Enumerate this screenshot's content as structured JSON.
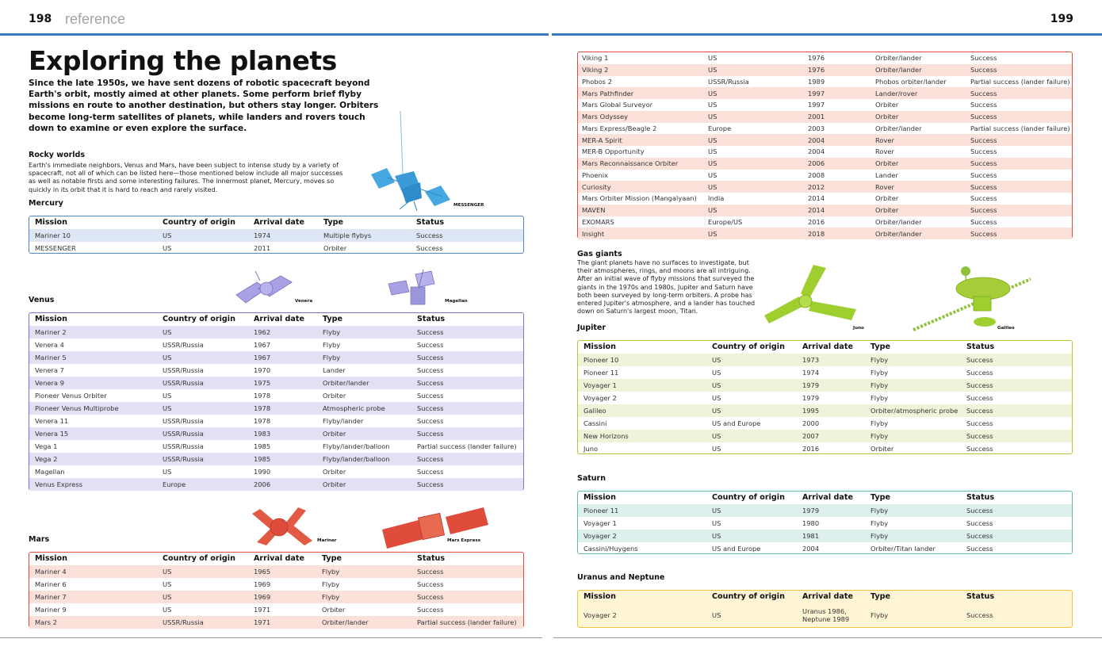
{
  "page": {
    "left_num": "198",
    "section": "reference",
    "right_num": "199",
    "title": "Exploring the planets",
    "intro": "Since the late 1950s, we have sent dozens of robotic spacecraft beyond Earth's orbit, mostly aimed at other planets. Some perform brief flyby missions en route to another destination, but others stay longer. Orbiters become long-term satellites of planets, while landers and rovers touch down to examine or even explore the surface.",
    "rocky_heading": "Rocky worlds",
    "rocky_text": "Earth's immediate neighbors, Venus and Mars, have been subject to intense study by a variety of spacecraft, not all of which can be listed here—those mentioned below include all major successes as well as notable firsts and some interesting failures. The innermost planet, Mercury, moves so quickly in its orbit that it is hard to reach and rarely visited.",
    "gas_heading": "Gas giants",
    "gas_text": "The giant planets have no surfaces to investigate, but their atmospheres, rings, and moons are all intriguing. After an initial wave of flyby missions that surveyed the giants in the 1970s and 1980s, Jupiter and Saturn have both been surveyed by long-term orbiters. A probe has entered Jupiter's atmosphere, and a lander has touched down on Saturn's largest moon, Titan."
  },
  "captions": {
    "messenger": "MESSENGER",
    "venera": "Venera",
    "magellan": "Magellan",
    "mariner": "Mariner",
    "mars_express": "Mars Express",
    "juno": "Juno",
    "galileo": "Galileo"
  },
  "columns": [
    "Mission",
    "Country of origin",
    "Arrival date",
    "Type",
    "Status"
  ],
  "colors": {
    "rule": "#3a78bf",
    "mercury": "#4f86c6",
    "mercury_band": "#dde6f4",
    "venus": "#7a74c4",
    "venus_band": "#e4e0f3",
    "mars": "#df4c3c",
    "mars_band": "#fbe1da",
    "jupiter": "#a6cd38",
    "jupiter_band": "#eef4d9",
    "saturn": "#5ebcae",
    "saturn_band": "#def0ed",
    "uranus": "#f0c43a",
    "uranus_band": "#fff4d4"
  },
  "tables": {
    "mercury": {
      "heading": "Mercury",
      "rows": [
        [
          "Mariner 10",
          "US",
          "1974",
          "Multiple flybys",
          "Success"
        ],
        [
          "MESSENGER",
          "US",
          "2011",
          "Orbiter",
          "Success"
        ]
      ]
    },
    "venus": {
      "heading": "Venus",
      "rows": [
        [
          "Mariner 2",
          "US",
          "1962",
          "Flyby",
          "Success"
        ],
        [
          "Venera 4",
          "USSR/Russia",
          "1967",
          "Flyby",
          "Success"
        ],
        [
          "Mariner 5",
          "US",
          "1967",
          "Flyby",
          "Success"
        ],
        [
          "Venera 7",
          "USSR/Russia",
          "1970",
          "Lander",
          "Success"
        ],
        [
          "Venera 9",
          "USSR/Russia",
          "1975",
          "Orbiter/lander",
          "Success"
        ],
        [
          "Pioneer Venus Orbiter",
          "US",
          "1978",
          "Orbiter",
          "Success"
        ],
        [
          "Pioneer Venus Multiprobe",
          "US",
          "1978",
          "Atmospheric probe",
          "Success"
        ],
        [
          "Venera 11",
          "USSR/Russia",
          "1978",
          "Flyby/lander",
          "Success"
        ],
        [
          "Venera 15",
          "USSR/Russia",
          "1983",
          "Orbiter",
          "Success"
        ],
        [
          "Vega 1",
          "USSR/Russia",
          "1985",
          "Flyby/lander/balloon",
          "Partial success (lander failure)"
        ],
        [
          "Vega 2",
          "USSR/Russia",
          "1985",
          "Flyby/lander/balloon",
          "Success"
        ],
        [
          "Magellan",
          "US",
          "1990",
          "Orbiter",
          "Success"
        ],
        [
          "Venus Express",
          "Europe",
          "2006",
          "Orbiter",
          "Success"
        ]
      ]
    },
    "mars": {
      "heading": "Mars",
      "rows": [
        [
          "Mariner 4",
          "US",
          "1965",
          "Flyby",
          "Success"
        ],
        [
          "Mariner 6",
          "US",
          "1969",
          "Flyby",
          "Success"
        ],
        [
          "Mariner 7",
          "US",
          "1969",
          "Flyby",
          "Success"
        ],
        [
          "Mariner 9",
          "US",
          "1971",
          "Orbiter",
          "Success"
        ],
        [
          "Mars 2",
          "USSR/Russia",
          "1971",
          "Orbiter/lander",
          "Partial success (lander failure)"
        ]
      ]
    },
    "mars_cont": {
      "rows": [
        [
          "Viking 1",
          "US",
          "1976",
          "Orbiter/lander",
          "Success"
        ],
        [
          "Viking 2",
          "US",
          "1976",
          "Orbiter/lander",
          "Success"
        ],
        [
          "Phobos 2",
          "USSR/Russia",
          "1989",
          "Phobos orbiter/lander",
          "Partial success (lander failure)"
        ],
        [
          "Mars Pathfinder",
          "US",
          "1997",
          "Lander/rover",
          "Success"
        ],
        [
          "Mars Global Surveyor",
          "US",
          "1997",
          "Orbiter",
          "Success"
        ],
        [
          "Mars Odyssey",
          "US",
          "2001",
          "Orbiter",
          "Success"
        ],
        [
          "Mars Express/Beagle 2",
          "Europe",
          "2003",
          "Orbiter/lander",
          "Partial success (lander failure)"
        ],
        [
          "MER-A Spirit",
          "US",
          "2004",
          "Rover",
          "Success"
        ],
        [
          "MER-B Opportunity",
          "US",
          "2004",
          "Rover",
          "Success"
        ],
        [
          "Mars Reconnaissance Orbiter",
          "US",
          "2006",
          "Orbiter",
          "Success"
        ],
        [
          "Phoenix",
          "US",
          "2008",
          "Lander",
          "Success"
        ],
        [
          "Curiosity",
          "US",
          "2012",
          "Rover",
          "Success"
        ],
        [
          "Mars Orbiter Mission (Mangalyaan)",
          "India",
          "2014",
          "Orbiter",
          "Success"
        ],
        [
          "MAVEN",
          "US",
          "2014",
          "Orbiter",
          "Success"
        ],
        [
          "EXOMARS",
          "Europe/US",
          "2016",
          "Orbiter/lander",
          "Success"
        ],
        [
          "Insight",
          "US",
          "2018",
          "Orbiter/lander",
          "Success"
        ]
      ]
    },
    "jupiter": {
      "heading": "Jupiter",
      "rows": [
        [
          "Pioneer 10",
          "US",
          "1973",
          "Flyby",
          "Success"
        ],
        [
          "Pioneer 11",
          "US",
          "1974",
          "Flyby",
          "Success"
        ],
        [
          "Voyager 1",
          "US",
          "1979",
          "Flyby",
          "Success"
        ],
        [
          "Voyager 2",
          "US",
          "1979",
          "Flyby",
          "Success"
        ],
        [
          "Galileo",
          "US",
          "1995",
          "Orbiter/atmospheric probe",
          "Success"
        ],
        [
          "Cassini",
          "US and Europe",
          "2000",
          "Flyby",
          "Success"
        ],
        [
          "New Horizons",
          "US",
          "2007",
          "Flyby",
          "Success"
        ],
        [
          "Juno",
          "US",
          "2016",
          "Orbiter",
          "Success"
        ]
      ]
    },
    "saturn": {
      "heading": "Saturn",
      "rows": [
        [
          "Pioneer 11",
          "US",
          "1979",
          "Flyby",
          "Success"
        ],
        [
          "Voyager 1",
          "US",
          "1980",
          "Flyby",
          "Success"
        ],
        [
          "Voyager 2",
          "US",
          "1981",
          "Flyby",
          "Success"
        ],
        [
          "Cassini/Huygens",
          "US and Europe",
          "2004",
          "Orbiter/Titan lander",
          "Success"
        ]
      ]
    },
    "uranus": {
      "heading": "Uranus and Neptune",
      "rows": [
        [
          "Voyager 2",
          "US",
          "Uranus 1986,\nNeptune 1989",
          "Flyby",
          "Success"
        ]
      ]
    }
  }
}
